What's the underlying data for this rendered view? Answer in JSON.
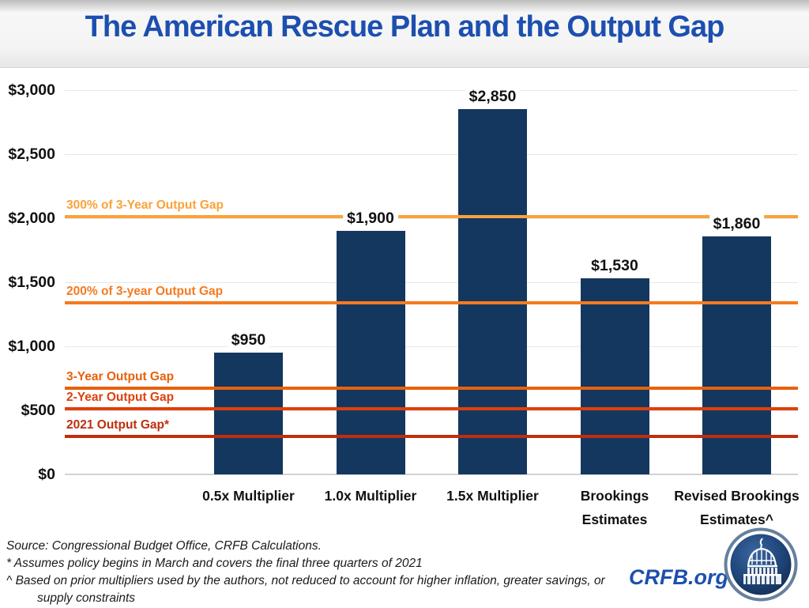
{
  "title": "The American Rescue Plan and the Output Gap",
  "colors": {
    "title": "#1C4FAF",
    "brand": "#1C4FAF",
    "bar": "#14375F",
    "gridline": "#E7E7E7",
    "axis_text": "#111111"
  },
  "chart_data": {
    "type": "bar",
    "title": "The American Rescue Plan and the Output Gap",
    "categories": [
      "0.5x Multiplier",
      "1.0x Multiplier",
      "1.5x Multiplier",
      "Brookings Estimates",
      "Revised Brookings Estimates^"
    ],
    "values": [
      950,
      1900,
      2850,
      1530,
      1860
    ],
    "value_labels": [
      "$950",
      "$1,900",
      "$2,850",
      "$1,530",
      "$1,860"
    ],
    "ylim": [
      0,
      3000
    ],
    "ytick_values": [
      0,
      500,
      1000,
      1500,
      2000,
      2500,
      3000
    ],
    "ytick_labels": [
      "$0",
      "$500",
      "$1,000",
      "$1,500",
      "$2,000",
      "$2,500",
      "$3,000"
    ],
    "grid": true,
    "legend": "none",
    "bar_color": "#14375F",
    "reference_lines": [
      {
        "label": "300% of 3-Year Output Gap",
        "value": 2015,
        "color": "#F9A33A"
      },
      {
        "label": "200% of 3-year Output Gap",
        "value": 1340,
        "color": "#F47B20"
      },
      {
        "label": "3-Year Output Gap",
        "value": 670,
        "color": "#E8610C"
      },
      {
        "label": "2-Year Output Gap",
        "value": 515,
        "color": "#DE400C"
      },
      {
        "label": "2021 Output Gap*",
        "value": 295,
        "color": "#BE2E0D"
      }
    ]
  },
  "footer": {
    "source_line": "Source: Congressional Budget Office, CRFB Calculations.",
    "note_assumes": "* Assumes policy begins in March and covers the final three quarters of 2021",
    "note_based": "^ Based on prior multipliers used by the authors, not reduced to account for higher inflation, greater savings, or",
    "note_based_cont": "supply constraints",
    "brand": "CRFB.org"
  }
}
